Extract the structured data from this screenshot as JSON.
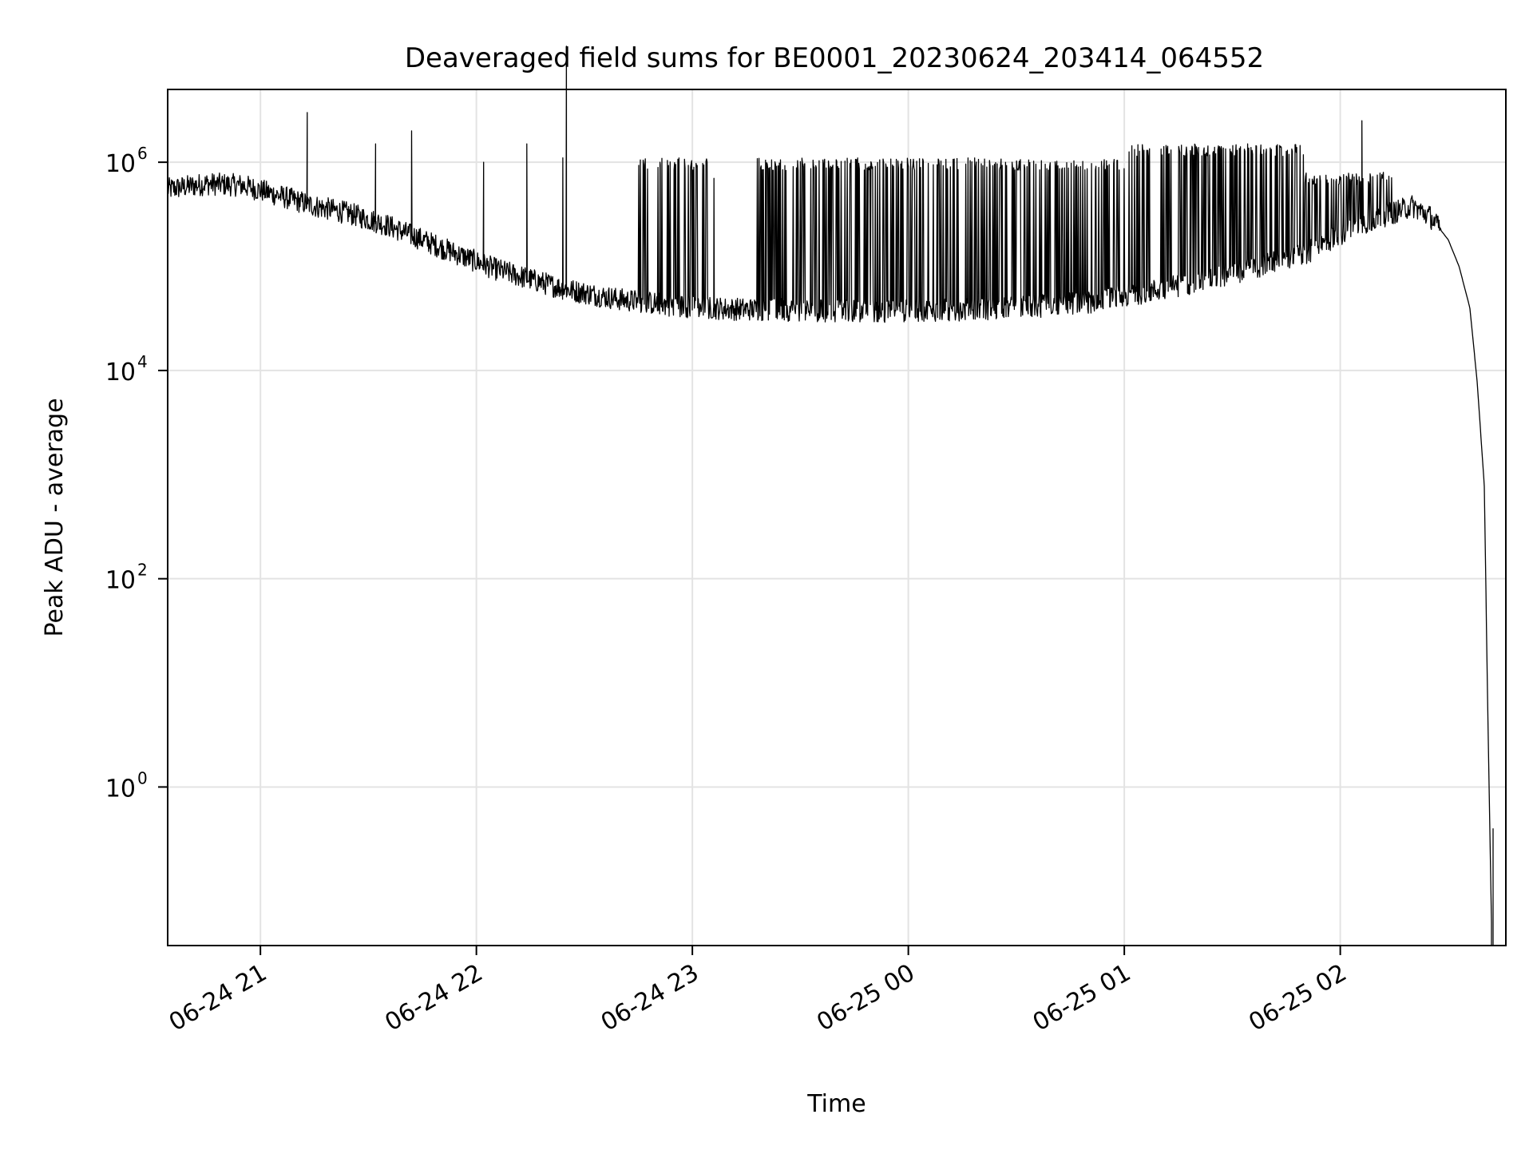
{
  "chart_data": {
    "type": "line",
    "title": "Deaveraged field sums for BE0001_20230624_203414_064552",
    "xlabel": "Time",
    "ylabel": "Peak ADU - average",
    "x_type": "time",
    "xlim": [
      "2023-06-24 20:34:14",
      "2023-06-25 02:46:00"
    ],
    "ylim": [
      0.03,
      5000000
    ],
    "y_scale": "log",
    "grid": true,
    "line_color": "#000000",
    "x_ticks": [
      {
        "label": "06-24 21",
        "value": "2023-06-24 21:00:00"
      },
      {
        "label": "06-24 22",
        "value": "2023-06-24 22:00:00"
      },
      {
        "label": "06-24 23",
        "value": "2023-06-24 23:00:00"
      },
      {
        "label": "06-25 00",
        "value": "2023-06-25 00:00:00"
      },
      {
        "label": "06-25 01",
        "value": "2023-06-25 01:00:00"
      },
      {
        "label": "06-25 02",
        "value": "2023-06-25 02:00:00"
      }
    ],
    "y_ticks": [
      {
        "base": "10",
        "exp": "0",
        "value": 1
      },
      {
        "base": "10",
        "exp": "2",
        "value": 100
      },
      {
        "base": "10",
        "exp": "4",
        "value": 10000
      },
      {
        "base": "10",
        "exp": "6",
        "value": 1000000
      }
    ],
    "series": [
      {
        "baseline": {
          "x": [
            "2023-06-24 20:34:14",
            "2023-06-24 20:45:00",
            "2023-06-24 20:55:00",
            "2023-06-24 21:05:00",
            "2023-06-24 21:15:00",
            "2023-06-24 21:25:00",
            "2023-06-24 21:35:00",
            "2023-06-24 21:45:00",
            "2023-06-24 21:55:00",
            "2023-06-24 22:05:00",
            "2023-06-24 22:15:00",
            "2023-06-24 22:25:00",
            "2023-06-24 22:40:00",
            "2023-06-24 22:55:00",
            "2023-06-24 23:10:00",
            "2023-06-24 23:30:00",
            "2023-06-24 23:50:00",
            "2023-06-25 00:10:00",
            "2023-06-25 00:30:00",
            "2023-06-25 00:50:00",
            "2023-06-25 01:10:00",
            "2023-06-25 01:30:00",
            "2023-06-25 01:50:00",
            "2023-06-25 02:05:00",
            "2023-06-25 02:15:00",
            "2023-06-25 02:20:00",
            "2023-06-25 02:25:00",
            "2023-06-25 02:30:00",
            "2023-06-25 02:33:00",
            "2023-06-25 02:36:00",
            "2023-06-25 02:38:00",
            "2023-06-25 02:40:00",
            "2023-06-25 02:41:00",
            "2023-06-25 02:42:00"
          ],
          "y": [
            550000,
            620000,
            600000,
            480000,
            380000,
            320000,
            250000,
            180000,
            130000,
            95000,
            75000,
            60000,
            48000,
            42000,
            39000,
            38000,
            37000,
            38000,
            40000,
            45000,
            60000,
            85000,
            130000,
            250000,
            330000,
            380000,
            300000,
            180000,
            100000,
            40000,
            8000,
            800,
            5,
            0.05
          ]
        },
        "spikes": {
          "x": [
            "2023-06-24 21:13:00",
            "2023-06-24 21:32:00",
            "2023-06-24 21:42:00",
            "2023-06-24 22:02:00",
            "2023-06-24 22:14:00",
            "2023-06-24 22:24:00",
            "2023-06-24 22:25:00",
            "2023-06-24 22:51:00",
            "2023-06-24 23:06:00",
            "2023-06-25 02:06:00"
          ],
          "y": [
            3000000,
            1500000,
            2000000,
            1000000,
            1500000,
            1100000,
            13000000,
            1000000,
            700000,
            2500000
          ]
        },
        "spike_bands": [
          {
            "x_from": "2023-06-24 22:45:00",
            "x_to": "2023-06-24 23:05:00",
            "peak": 1100000
          },
          {
            "x_from": "2023-06-24 23:18:00",
            "x_to": "2023-06-25 00:00:00",
            "peak": 1100000
          },
          {
            "x_from": "2023-06-25 00:00:00",
            "x_to": "2023-06-25 01:00:00",
            "peak": 1100000
          },
          {
            "x_from": "2023-06-25 01:00:00",
            "x_to": "2023-06-25 01:50:00",
            "peak": 1500000
          },
          {
            "x_from": "2023-06-25 01:50:00",
            "x_to": "2023-06-25 02:15:00",
            "peak": 800000
          }
        ]
      }
    ]
  }
}
